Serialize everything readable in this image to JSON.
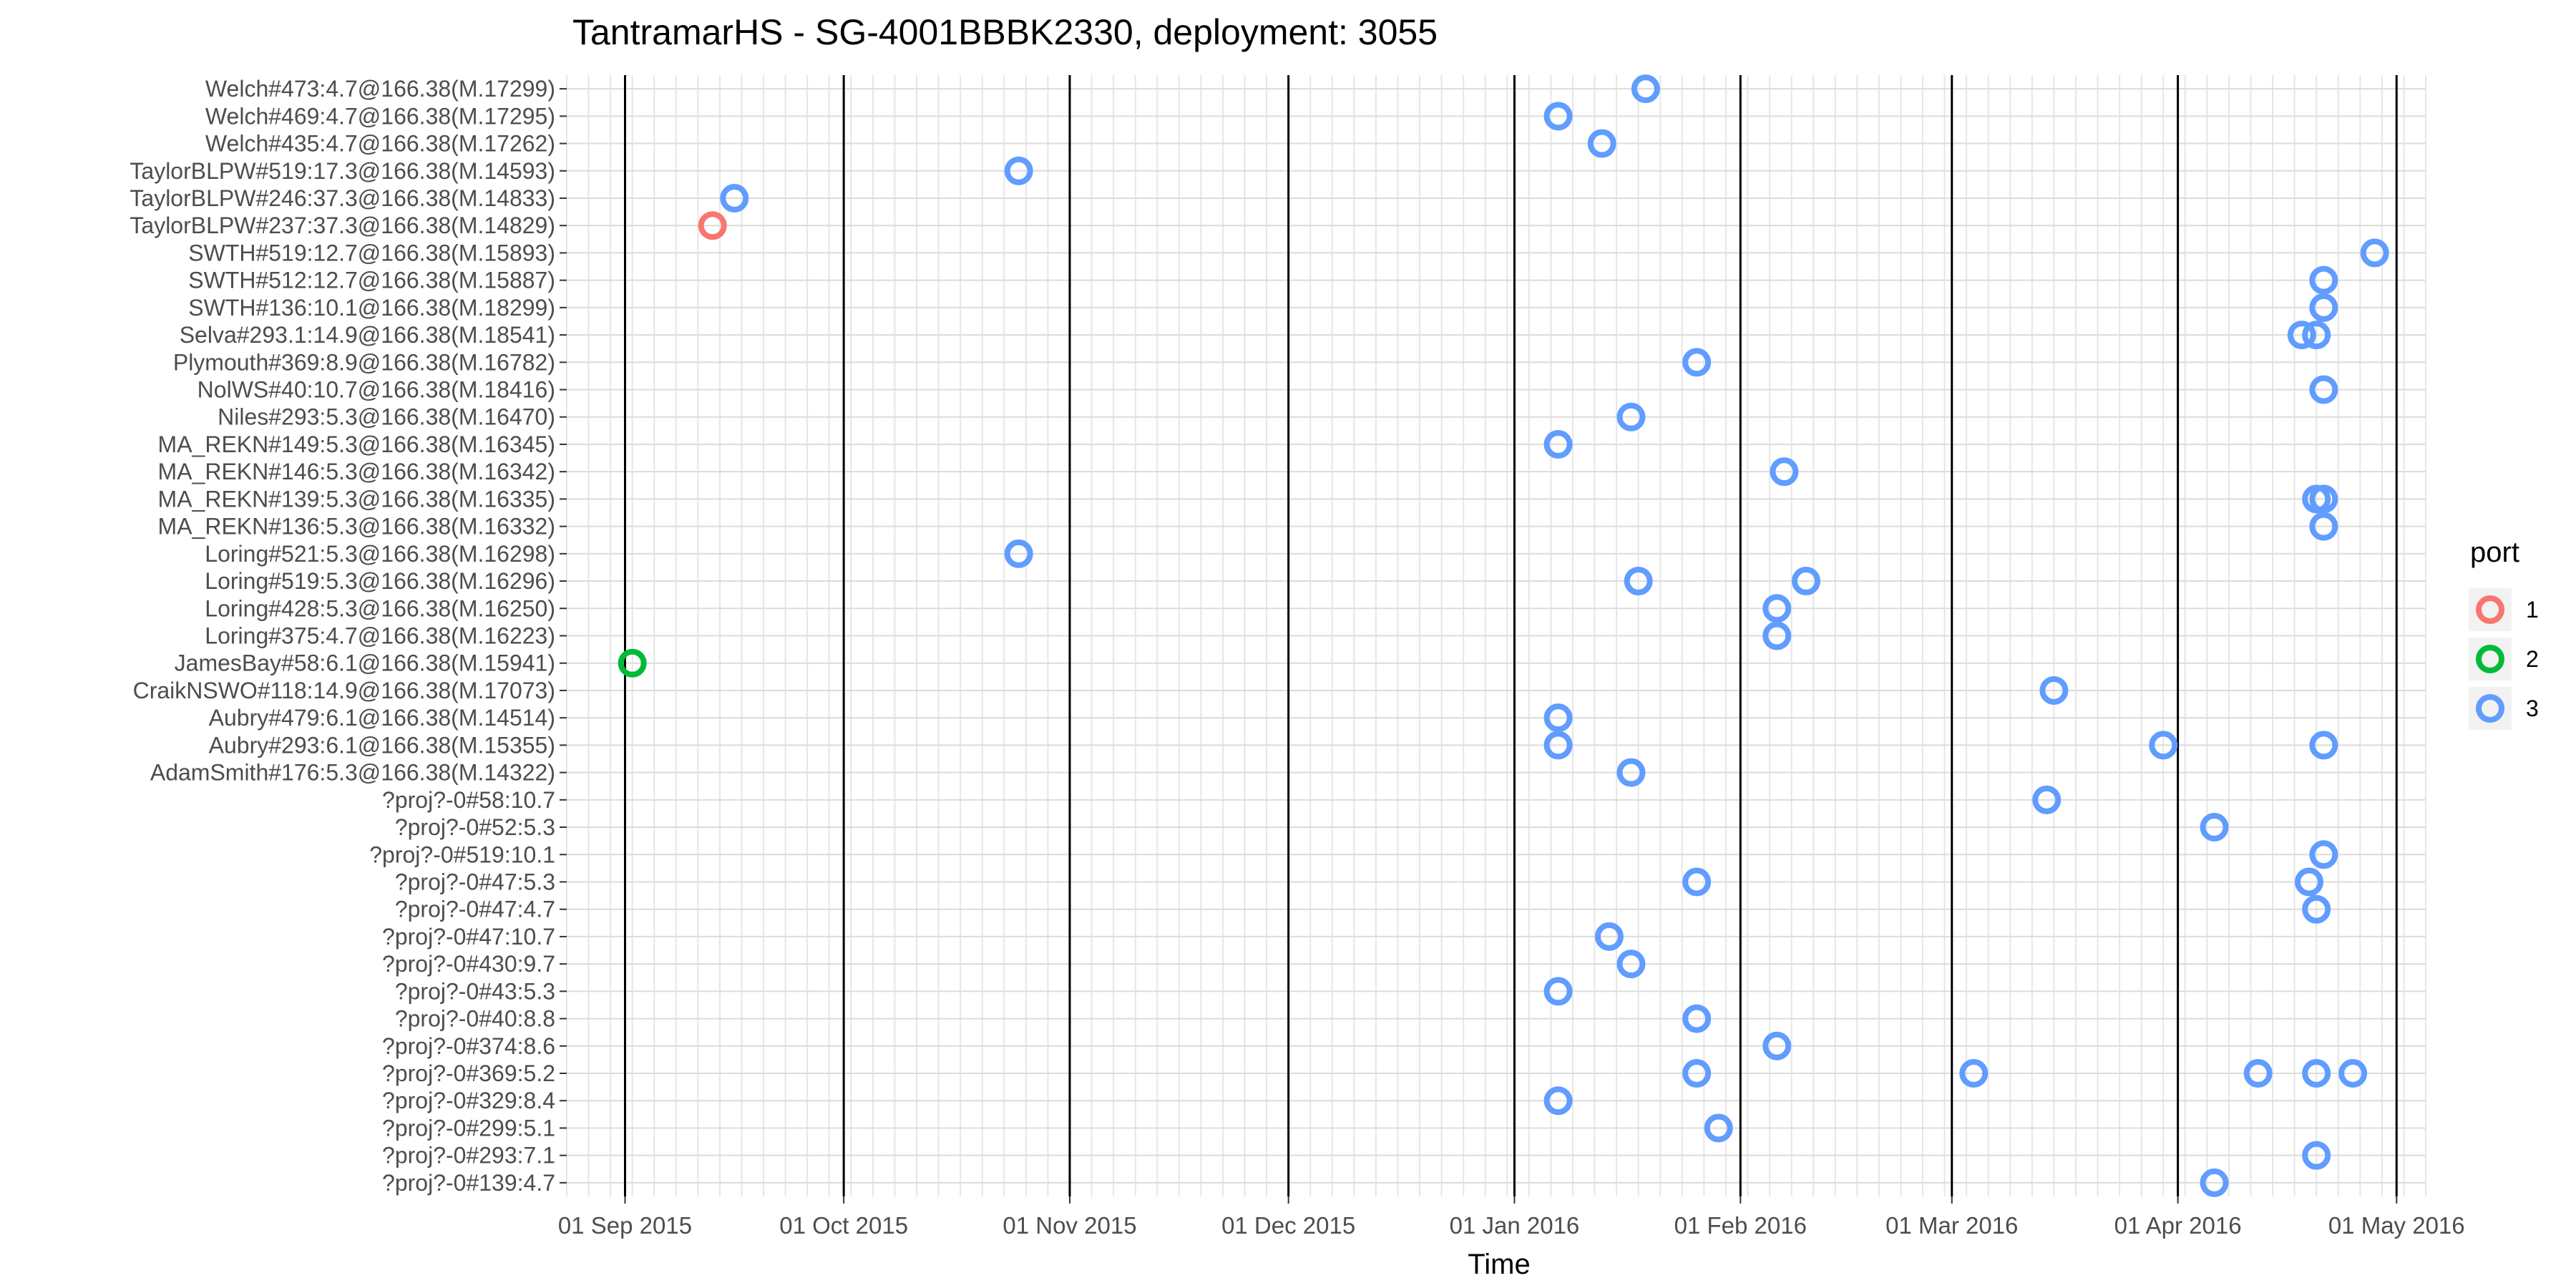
{
  "chart_data": {
    "type": "scatter",
    "title": "TantramarHS - SG-4001BBBK2330, deployment: 3055",
    "xlabel": "Time",
    "ylabel": "",
    "xlim": [
      "2015-08-24",
      "2016-05-05"
    ],
    "x_ticks": [
      {
        "date": "2015-09-01",
        "label": "01 Sep 2015"
      },
      {
        "date": "2015-10-01",
        "label": "01 Oct 2015"
      },
      {
        "date": "2015-11-01",
        "label": "01 Nov 2015"
      },
      {
        "date": "2015-12-01",
        "label": "01 Dec 2015"
      },
      {
        "date": "2016-01-01",
        "label": "01 Jan 2016"
      },
      {
        "date": "2016-02-01",
        "label": "01 Feb 2016"
      },
      {
        "date": "2016-03-01",
        "label": "01 Mar 2016"
      },
      {
        "date": "2016-04-01",
        "label": "01 Apr 2016"
      },
      {
        "date": "2016-05-01",
        "label": "01 May 2016"
      }
    ],
    "grid": true,
    "legend": {
      "title": "port",
      "position": "right"
    },
    "categories": [
      "Welch#473:4.7@166.38(M.17299)",
      "Welch#469:4.7@166.38(M.17295)",
      "Welch#435:4.7@166.38(M.17262)",
      "TaylorBLPW#519:17.3@166.38(M.14593)",
      "TaylorBLPW#246:37.3@166.38(M.14833)",
      "TaylorBLPW#237:37.3@166.38(M.14829)",
      "SWTH#519:12.7@166.38(M.15893)",
      "SWTH#512:12.7@166.38(M.15887)",
      "SWTH#136:10.1@166.38(M.18299)",
      "Selva#293.1:14.9@166.38(M.18541)",
      "Plymouth#369:8.9@166.38(M.16782)",
      "NolWS#40:10.7@166.38(M.18416)",
      "Niles#293:5.3@166.38(M.16470)",
      "MA_REKN#149:5.3@166.38(M.16345)",
      "MA_REKN#146:5.3@166.38(M.16342)",
      "MA_REKN#139:5.3@166.38(M.16335)",
      "MA_REKN#136:5.3@166.38(M.16332)",
      "Loring#521:5.3@166.38(M.16298)",
      "Loring#519:5.3@166.38(M.16296)",
      "Loring#428:5.3@166.38(M.16250)",
      "Loring#375:4.7@166.38(M.16223)",
      "JamesBay#58:6.1@166.38(M.15941)",
      "CraikNSWO#118:14.9@166.38(M.17073)",
      "Aubry#479:6.1@166.38(M.14514)",
      "Aubry#293:6.1@166.38(M.15355)",
      "AdamSmith#176:5.3@166.38(M.14322)",
      "?proj?-0#58:10.7",
      "?proj?-0#52:5.3",
      "?proj?-0#519:10.1",
      "?proj?-0#47:5.3",
      "?proj?-0#47:4.7",
      "?proj?-0#47:10.7",
      "?proj?-0#430:9.7",
      "?proj?-0#43:5.3",
      "?proj?-0#40:8.8",
      "?proj?-0#374:8.6",
      "?proj?-0#369:5.2",
      "?proj?-0#329:8.4",
      "?proj?-0#299:5.1",
      "?proj?-0#293:7.1",
      "?proj?-0#139:4.7"
    ],
    "series": [
      {
        "name": "1",
        "color": "#F8766D",
        "points": [
          {
            "x": "2015-09-13",
            "y": "TaylorBLPW#237:37.3@166.38(M.14829)"
          }
        ]
      },
      {
        "name": "2",
        "color": "#00BA38",
        "points": [
          {
            "x": "2015-09-02",
            "y": "JamesBay#58:6.1@166.38(M.15941)"
          }
        ]
      },
      {
        "name": "3",
        "color": "#619CFF",
        "points": [
          {
            "x": "2016-01-19",
            "y": "Welch#473:4.7@166.38(M.17299)"
          },
          {
            "x": "2016-01-07",
            "y": "Welch#469:4.7@166.38(M.17295)"
          },
          {
            "x": "2016-01-13",
            "y": "Welch#435:4.7@166.38(M.17262)"
          },
          {
            "x": "2015-10-25",
            "y": "TaylorBLPW#519:17.3@166.38(M.14593)"
          },
          {
            "x": "2015-09-16",
            "y": "TaylorBLPW#246:37.3@166.38(M.14833)"
          },
          {
            "x": "2016-04-28",
            "y": "SWTH#519:12.7@166.38(M.15893)"
          },
          {
            "x": "2016-04-21",
            "y": "SWTH#512:12.7@166.38(M.15887)"
          },
          {
            "x": "2016-04-21",
            "y": "SWTH#136:10.1@166.38(M.18299)"
          },
          {
            "x": "2016-04-18",
            "y": "Selva#293.1:14.9@166.38(M.18541)"
          },
          {
            "x": "2016-04-20",
            "y": "Selva#293.1:14.9@166.38(M.18541)"
          },
          {
            "x": "2016-01-26",
            "y": "Plymouth#369:8.9@166.38(M.16782)"
          },
          {
            "x": "2016-04-21",
            "y": "NolWS#40:10.7@166.38(M.18416)"
          },
          {
            "x": "2016-01-17",
            "y": "Niles#293:5.3@166.38(M.16470)"
          },
          {
            "x": "2016-01-07",
            "y": "MA_REKN#149:5.3@166.38(M.16345)"
          },
          {
            "x": "2016-02-07",
            "y": "MA_REKN#146:5.3@166.38(M.16342)"
          },
          {
            "x": "2016-04-20",
            "y": "MA_REKN#139:5.3@166.38(M.16335)"
          },
          {
            "x": "2016-04-21",
            "y": "MA_REKN#139:5.3@166.38(M.16335)"
          },
          {
            "x": "2016-04-21",
            "y": "MA_REKN#136:5.3@166.38(M.16332)"
          },
          {
            "x": "2015-10-25",
            "y": "Loring#521:5.3@166.38(M.16298)"
          },
          {
            "x": "2016-01-18",
            "y": "Loring#519:5.3@166.38(M.16296)"
          },
          {
            "x": "2016-02-10",
            "y": "Loring#519:5.3@166.38(M.16296)"
          },
          {
            "x": "2016-02-06",
            "y": "Loring#428:5.3@166.38(M.16250)"
          },
          {
            "x": "2016-02-06",
            "y": "Loring#375:4.7@166.38(M.16223)"
          },
          {
            "x": "2016-03-15",
            "y": "CraikNSWO#118:14.9@166.38(M.17073)"
          },
          {
            "x": "2016-01-07",
            "y": "Aubry#479:6.1@166.38(M.14514)"
          },
          {
            "x": "2016-01-07",
            "y": "Aubry#293:6.1@166.38(M.15355)"
          },
          {
            "x": "2016-03-30",
            "y": "Aubry#293:6.1@166.38(M.15355)"
          },
          {
            "x": "2016-04-21",
            "y": "Aubry#293:6.1@166.38(M.15355)"
          },
          {
            "x": "2016-01-17",
            "y": "AdamSmith#176:5.3@166.38(M.14322)"
          },
          {
            "x": "2016-03-14",
            "y": "?proj?-0#58:10.7"
          },
          {
            "x": "2016-04-06",
            "y": "?proj?-0#52:5.3"
          },
          {
            "x": "2016-04-21",
            "y": "?proj?-0#519:10.1"
          },
          {
            "x": "2016-01-26",
            "y": "?proj?-0#47:5.3"
          },
          {
            "x": "2016-04-19",
            "y": "?proj?-0#47:5.3"
          },
          {
            "x": "2016-04-20",
            "y": "?proj?-0#47:4.7"
          },
          {
            "x": "2016-01-14",
            "y": "?proj?-0#47:10.7"
          },
          {
            "x": "2016-01-17",
            "y": "?proj?-0#430:9.7"
          },
          {
            "x": "2016-01-07",
            "y": "?proj?-0#43:5.3"
          },
          {
            "x": "2016-01-26",
            "y": "?proj?-0#40:8.8"
          },
          {
            "x": "2016-02-06",
            "y": "?proj?-0#374:8.6"
          },
          {
            "x": "2016-01-26",
            "y": "?proj?-0#369:5.2"
          },
          {
            "x": "2016-03-04",
            "y": "?proj?-0#369:5.2"
          },
          {
            "x": "2016-04-12",
            "y": "?proj?-0#369:5.2"
          },
          {
            "x": "2016-04-20",
            "y": "?proj?-0#369:5.2"
          },
          {
            "x": "2016-04-25",
            "y": "?proj?-0#369:5.2"
          },
          {
            "x": "2016-01-07",
            "y": "?proj?-0#329:8.4"
          },
          {
            "x": "2016-01-29",
            "y": "?proj?-0#299:5.1"
          },
          {
            "x": "2016-04-20",
            "y": "?proj?-0#293:7.1"
          },
          {
            "x": "2016-04-06",
            "y": "?proj?-0#139:4.7"
          }
        ]
      }
    ]
  }
}
